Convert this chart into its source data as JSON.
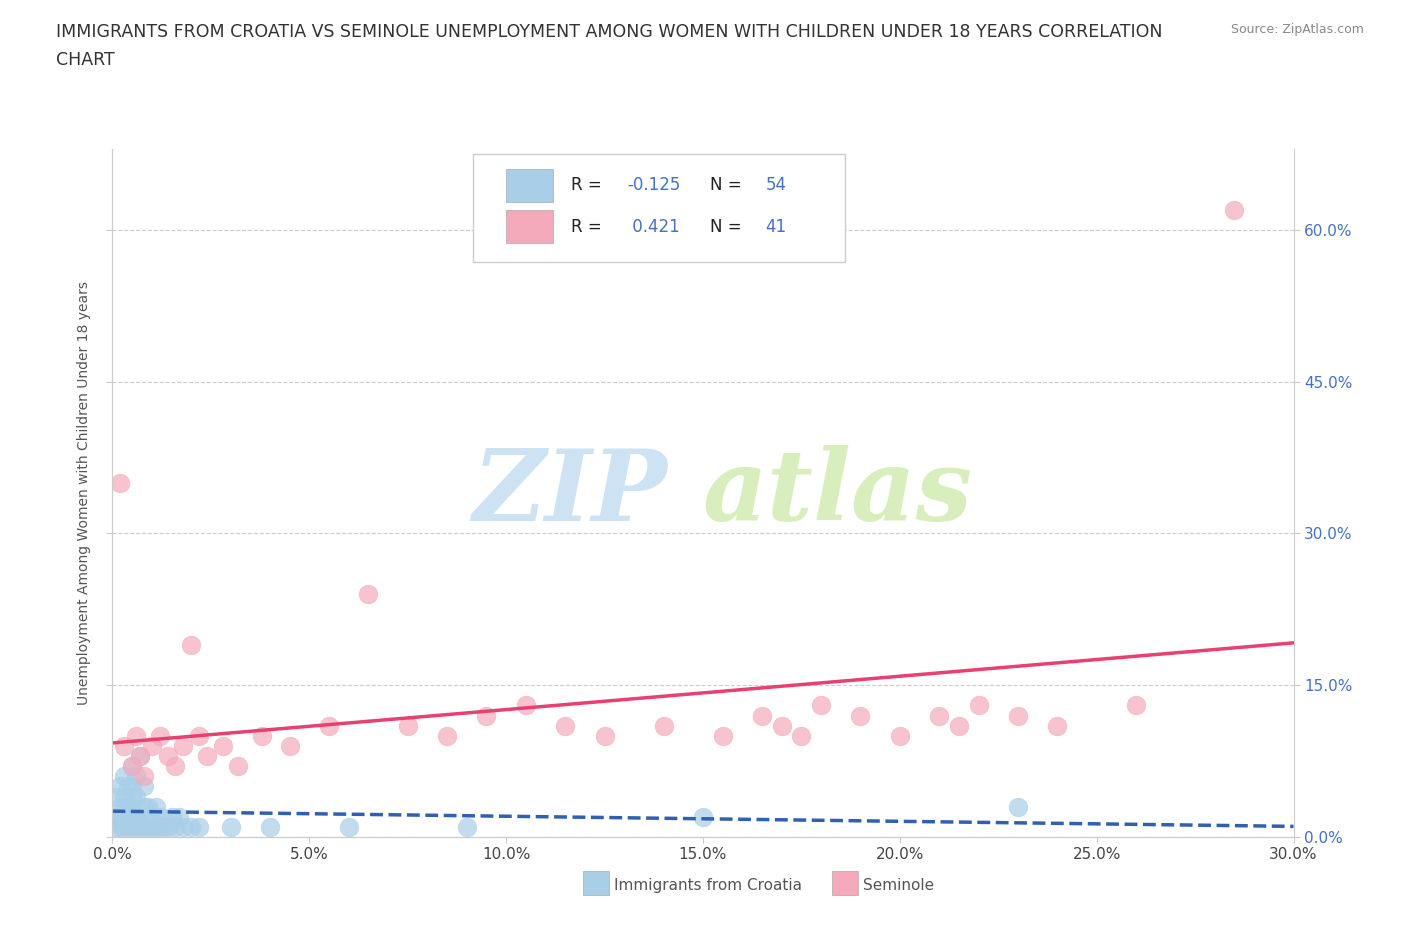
{
  "title_line1": "IMMIGRANTS FROM CROATIA VS SEMINOLE UNEMPLOYMENT AMONG WOMEN WITH CHILDREN UNDER 18 YEARS CORRELATION",
  "title_line2": "CHART",
  "source": "Source: ZipAtlas.com",
  "ylabel": "Unemployment Among Women with Children Under 18 years",
  "legend_bottom": [
    "Immigrants from Croatia",
    "Seminole"
  ],
  "r_blue": -0.125,
  "r_pink": 0.421,
  "n_blue": 54,
  "n_pink": 41,
  "blue_color": "#A8CEE8",
  "pink_color": "#F4AABB",
  "blue_line_color": "#3060B0",
  "pink_line_color": "#E84070",
  "bg_color": "#FFFFFF",
  "grid_color": "#CCCCCC",
  "right_tick_color": "#4472C4",
  "xlim": [
    0.0,
    0.3
  ],
  "ylim": [
    0.0,
    0.68
  ],
  "xtick_vals": [
    0.0,
    0.05,
    0.1,
    0.15,
    0.2,
    0.25,
    0.3
  ],
  "ytick_vals": [
    0.0,
    0.15,
    0.3,
    0.45,
    0.6
  ],
  "blue_x": [
    0.001,
    0.001,
    0.001,
    0.002,
    0.002,
    0.002,
    0.002,
    0.003,
    0.003,
    0.003,
    0.003,
    0.003,
    0.004,
    0.004,
    0.004,
    0.004,
    0.005,
    0.005,
    0.005,
    0.005,
    0.005,
    0.005,
    0.006,
    0.006,
    0.006,
    0.006,
    0.007,
    0.007,
    0.007,
    0.008,
    0.008,
    0.008,
    0.009,
    0.009,
    0.01,
    0.01,
    0.011,
    0.011,
    0.012,
    0.012,
    0.013,
    0.014,
    0.015,
    0.016,
    0.017,
    0.018,
    0.02,
    0.022,
    0.03,
    0.04,
    0.06,
    0.09,
    0.15,
    0.23
  ],
  "blue_y": [
    0.01,
    0.02,
    0.04,
    0.01,
    0.02,
    0.03,
    0.05,
    0.01,
    0.02,
    0.03,
    0.04,
    0.06,
    0.01,
    0.02,
    0.03,
    0.05,
    0.01,
    0.02,
    0.03,
    0.04,
    0.05,
    0.07,
    0.01,
    0.02,
    0.04,
    0.06,
    0.01,
    0.02,
    0.08,
    0.01,
    0.03,
    0.05,
    0.01,
    0.03,
    0.01,
    0.02,
    0.01,
    0.03,
    0.01,
    0.02,
    0.01,
    0.01,
    0.02,
    0.01,
    0.02,
    0.01,
    0.01,
    0.01,
    0.01,
    0.01,
    0.01,
    0.01,
    0.02,
    0.03
  ],
  "pink_x": [
    0.002,
    0.003,
    0.005,
    0.006,
    0.007,
    0.008,
    0.01,
    0.012,
    0.014,
    0.016,
    0.018,
    0.02,
    0.022,
    0.024,
    0.028,
    0.032,
    0.038,
    0.045,
    0.055,
    0.065,
    0.075,
    0.085,
    0.095,
    0.105,
    0.115,
    0.125,
    0.14,
    0.155,
    0.165,
    0.17,
    0.175,
    0.18,
    0.19,
    0.2,
    0.21,
    0.215,
    0.22,
    0.23,
    0.24,
    0.26,
    0.285
  ],
  "pink_y": [
    0.35,
    0.09,
    0.07,
    0.1,
    0.08,
    0.06,
    0.09,
    0.1,
    0.08,
    0.07,
    0.09,
    0.19,
    0.1,
    0.08,
    0.09,
    0.07,
    0.1,
    0.09,
    0.11,
    0.24,
    0.11,
    0.1,
    0.12,
    0.13,
    0.11,
    0.1,
    0.11,
    0.1,
    0.12,
    0.11,
    0.1,
    0.13,
    0.12,
    0.1,
    0.12,
    0.11,
    0.13,
    0.12,
    0.11,
    0.13,
    0.62
  ],
  "watermark_zip": "ZIP",
  "watermark_atlas": "atlas"
}
